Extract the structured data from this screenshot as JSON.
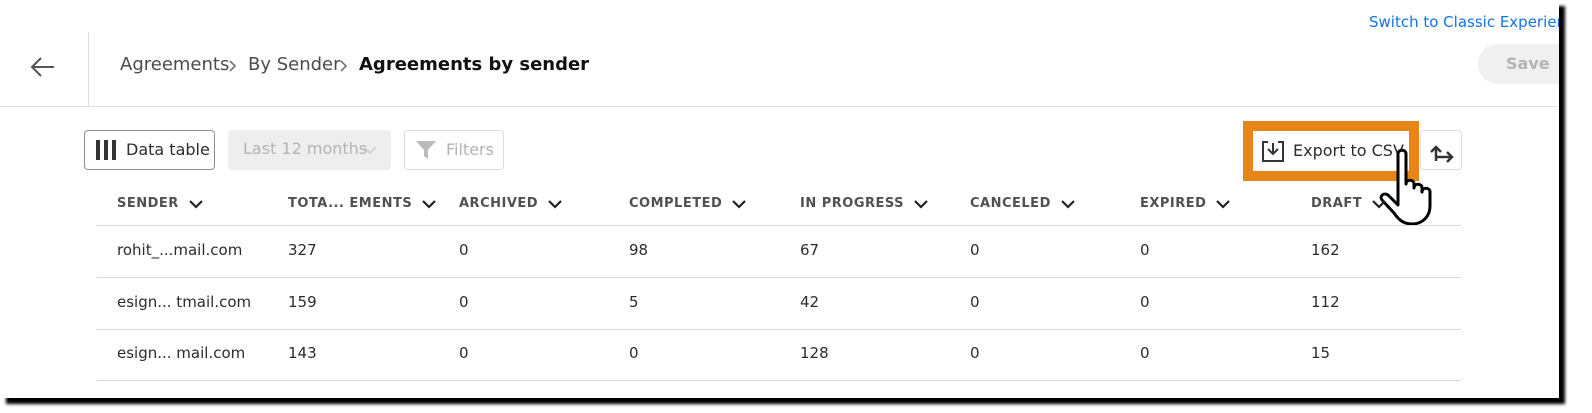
{
  "header": {
    "switch_link": "Switch to Classic Experience",
    "breadcrumb": [
      "Agreements",
      "By Sender",
      "Agreements by sender"
    ],
    "save": "Save"
  },
  "toolbar": {
    "data_table": "Data table",
    "period": "Last 12 months",
    "filters": "Filters",
    "export": "Export to CSV"
  },
  "table": {
    "columns": [
      "SENDER",
      "TOTA... EMENTS",
      "ARCHIVED",
      "COMPLETED",
      "IN PROGRESS",
      "CANCELED",
      "EXPIRED",
      "DRAFT"
    ],
    "rows": [
      [
        "rohit_...mail.com",
        "327",
        "0",
        "98",
        "67",
        "0",
        "0",
        "162"
      ],
      [
        "esign...  tmail.com",
        "159",
        "0",
        "5",
        "42",
        "0",
        "0",
        "112"
      ],
      [
        "esign...  mail.com",
        "143",
        "0",
        "0",
        "128",
        "0",
        "0",
        "15"
      ]
    ]
  }
}
